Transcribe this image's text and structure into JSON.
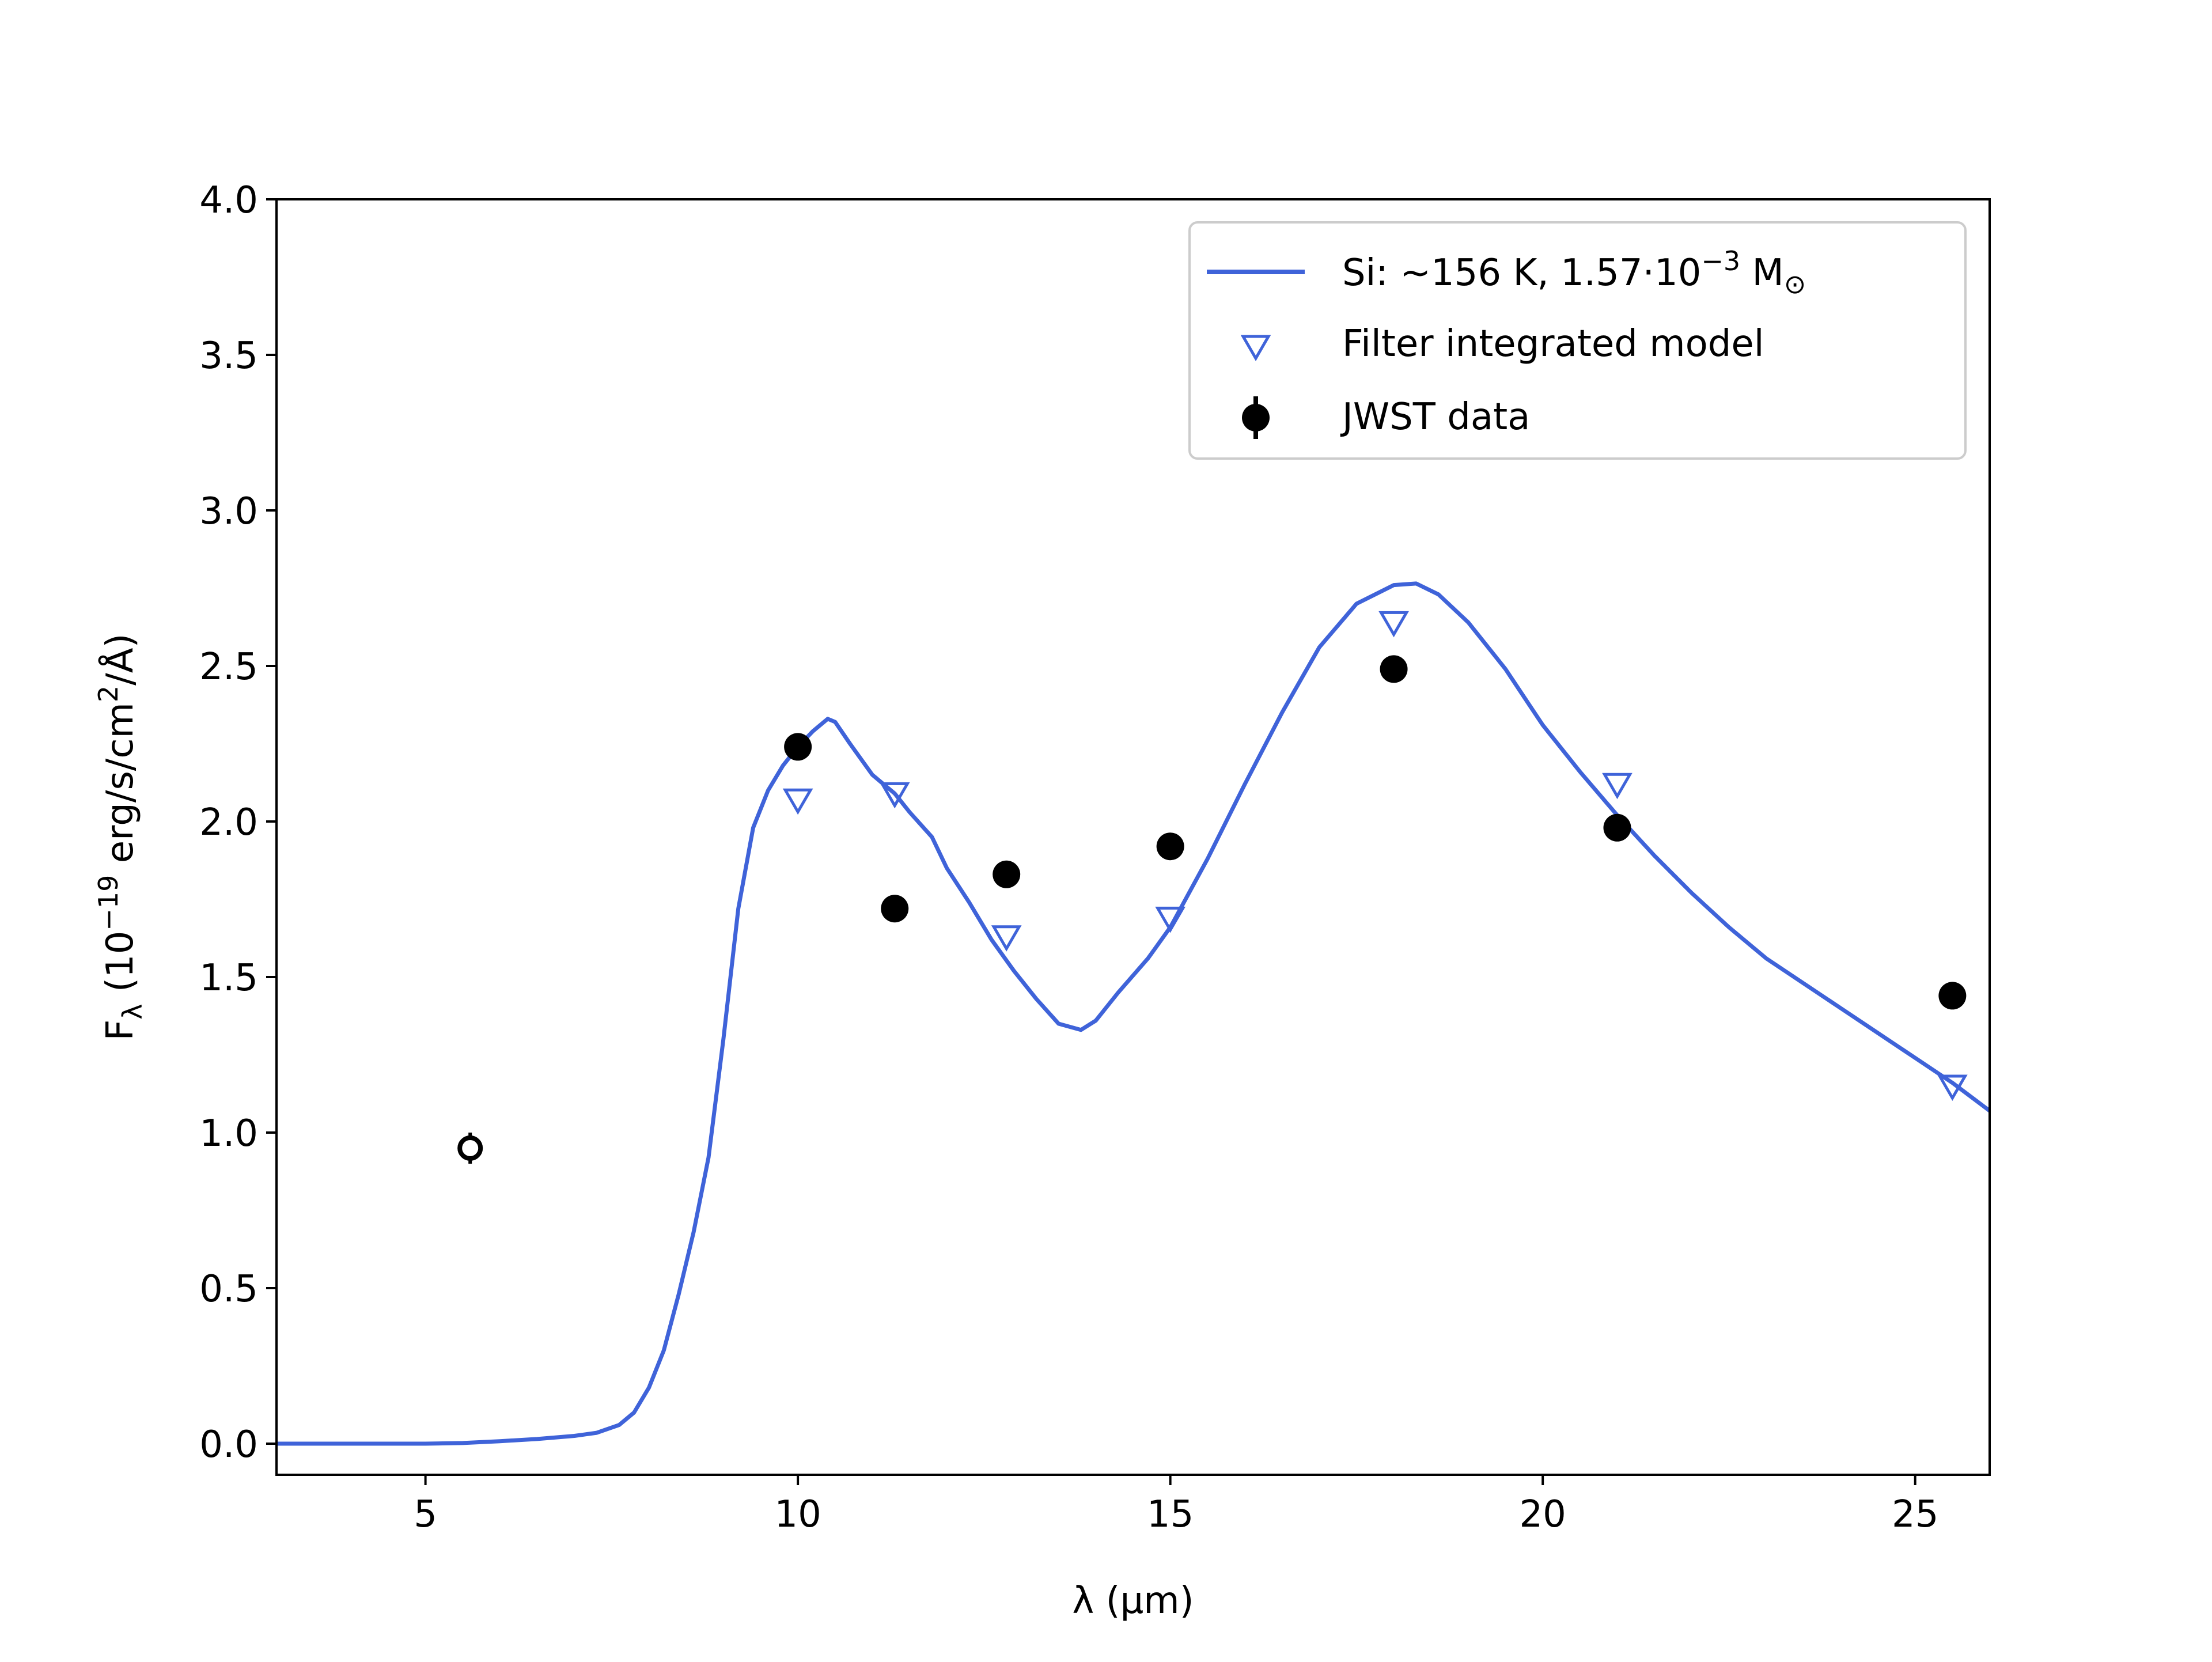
{
  "chart_data": {
    "type": "line",
    "xlabel": "λ (μm)",
    "ylabel": "F",
    "ylabel_sub": "λ",
    "ylabel_paren_open": " (10",
    "ylabel_exp": "−19",
    "ylabel_mid": " erg/s/cm",
    "ylabel_exp2": "2",
    "ylabel_end": "/Å)",
    "xlim": [
      3,
      26
    ],
    "ylim": [
      -0.1,
      4.0
    ],
    "xticks": [
      5,
      10,
      15,
      20,
      25
    ],
    "xtick_labels": [
      "5",
      "10",
      "15",
      "20",
      "25"
    ],
    "yticks": [
      0.0,
      0.5,
      1.0,
      1.5,
      2.0,
      2.5,
      3.0,
      3.5,
      4.0
    ],
    "ytick_labels": [
      "0.0",
      "0.5",
      "1.0",
      "1.5",
      "2.0",
      "2.5",
      "3.0",
      "3.5",
      "4.0"
    ],
    "grid": false,
    "legend_position": "top-right",
    "legend": {
      "model_pre": "Si: ~156 K, 1.57·10",
      "model_exp": "−3",
      "model_post": " M",
      "model_sub": "⊙",
      "filter_label": "Filter integrated model",
      "data_label": "JWST data"
    },
    "series": [
      {
        "kind": "line",
        "color": "#3f63d9",
        "x": [
          3.0,
          4.0,
          5.0,
          5.5,
          6.0,
          6.5,
          7.0,
          7.3,
          7.6,
          7.8,
          8.0,
          8.2,
          8.4,
          8.6,
          8.8,
          9.0,
          9.2,
          9.4,
          9.6,
          9.8,
          10.0,
          10.2,
          10.4,
          10.5,
          10.7,
          11.0,
          11.3,
          11.5,
          11.8,
          12.0,
          12.3,
          12.6,
          12.9,
          13.2,
          13.5,
          13.8,
          14.0,
          14.3,
          14.7,
          15.0,
          15.5,
          16.0,
          16.5,
          17.0,
          17.5,
          18.0,
          18.3,
          18.6,
          19.0,
          19.5,
          20.0,
          20.5,
          21.0,
          21.5,
          22.0,
          22.5,
          23.0,
          24.0,
          25.0,
          25.5,
          26.0
        ],
        "y": [
          0.0,
          0.0,
          0.0,
          0.002,
          0.008,
          0.015,
          0.025,
          0.035,
          0.06,
          0.1,
          0.18,
          0.3,
          0.48,
          0.68,
          0.92,
          1.3,
          1.72,
          1.98,
          2.1,
          2.18,
          2.24,
          2.29,
          2.33,
          2.32,
          2.25,
          2.15,
          2.09,
          2.03,
          1.95,
          1.85,
          1.74,
          1.62,
          1.52,
          1.43,
          1.35,
          1.33,
          1.36,
          1.45,
          1.56,
          1.66,
          1.88,
          2.12,
          2.35,
          2.56,
          2.7,
          2.76,
          2.765,
          2.73,
          2.64,
          2.49,
          2.31,
          2.16,
          2.02,
          1.89,
          1.77,
          1.66,
          1.56,
          1.4,
          1.24,
          1.16,
          1.07
        ]
      },
      {
        "kind": "triangles",
        "color": "#3f63d9",
        "x": [
          10.0,
          11.3,
          12.8,
          15.0,
          18.0,
          21.0,
          25.5
        ],
        "y": [
          2.07,
          2.09,
          1.63,
          1.69,
          2.64,
          2.12,
          1.15
        ]
      },
      {
        "kind": "points",
        "color": "#000000",
        "x": [
          10.0,
          11.3,
          12.8,
          15.0,
          18.0,
          21.0,
          25.5
        ],
        "y": [
          2.24,
          1.72,
          1.83,
          1.92,
          2.49,
          1.98,
          1.44
        ]
      },
      {
        "kind": "open-point",
        "color": "#000000",
        "x": [
          5.6
        ],
        "y": [
          0.95
        ],
        "yerr": [
          0.05
        ]
      }
    ]
  }
}
